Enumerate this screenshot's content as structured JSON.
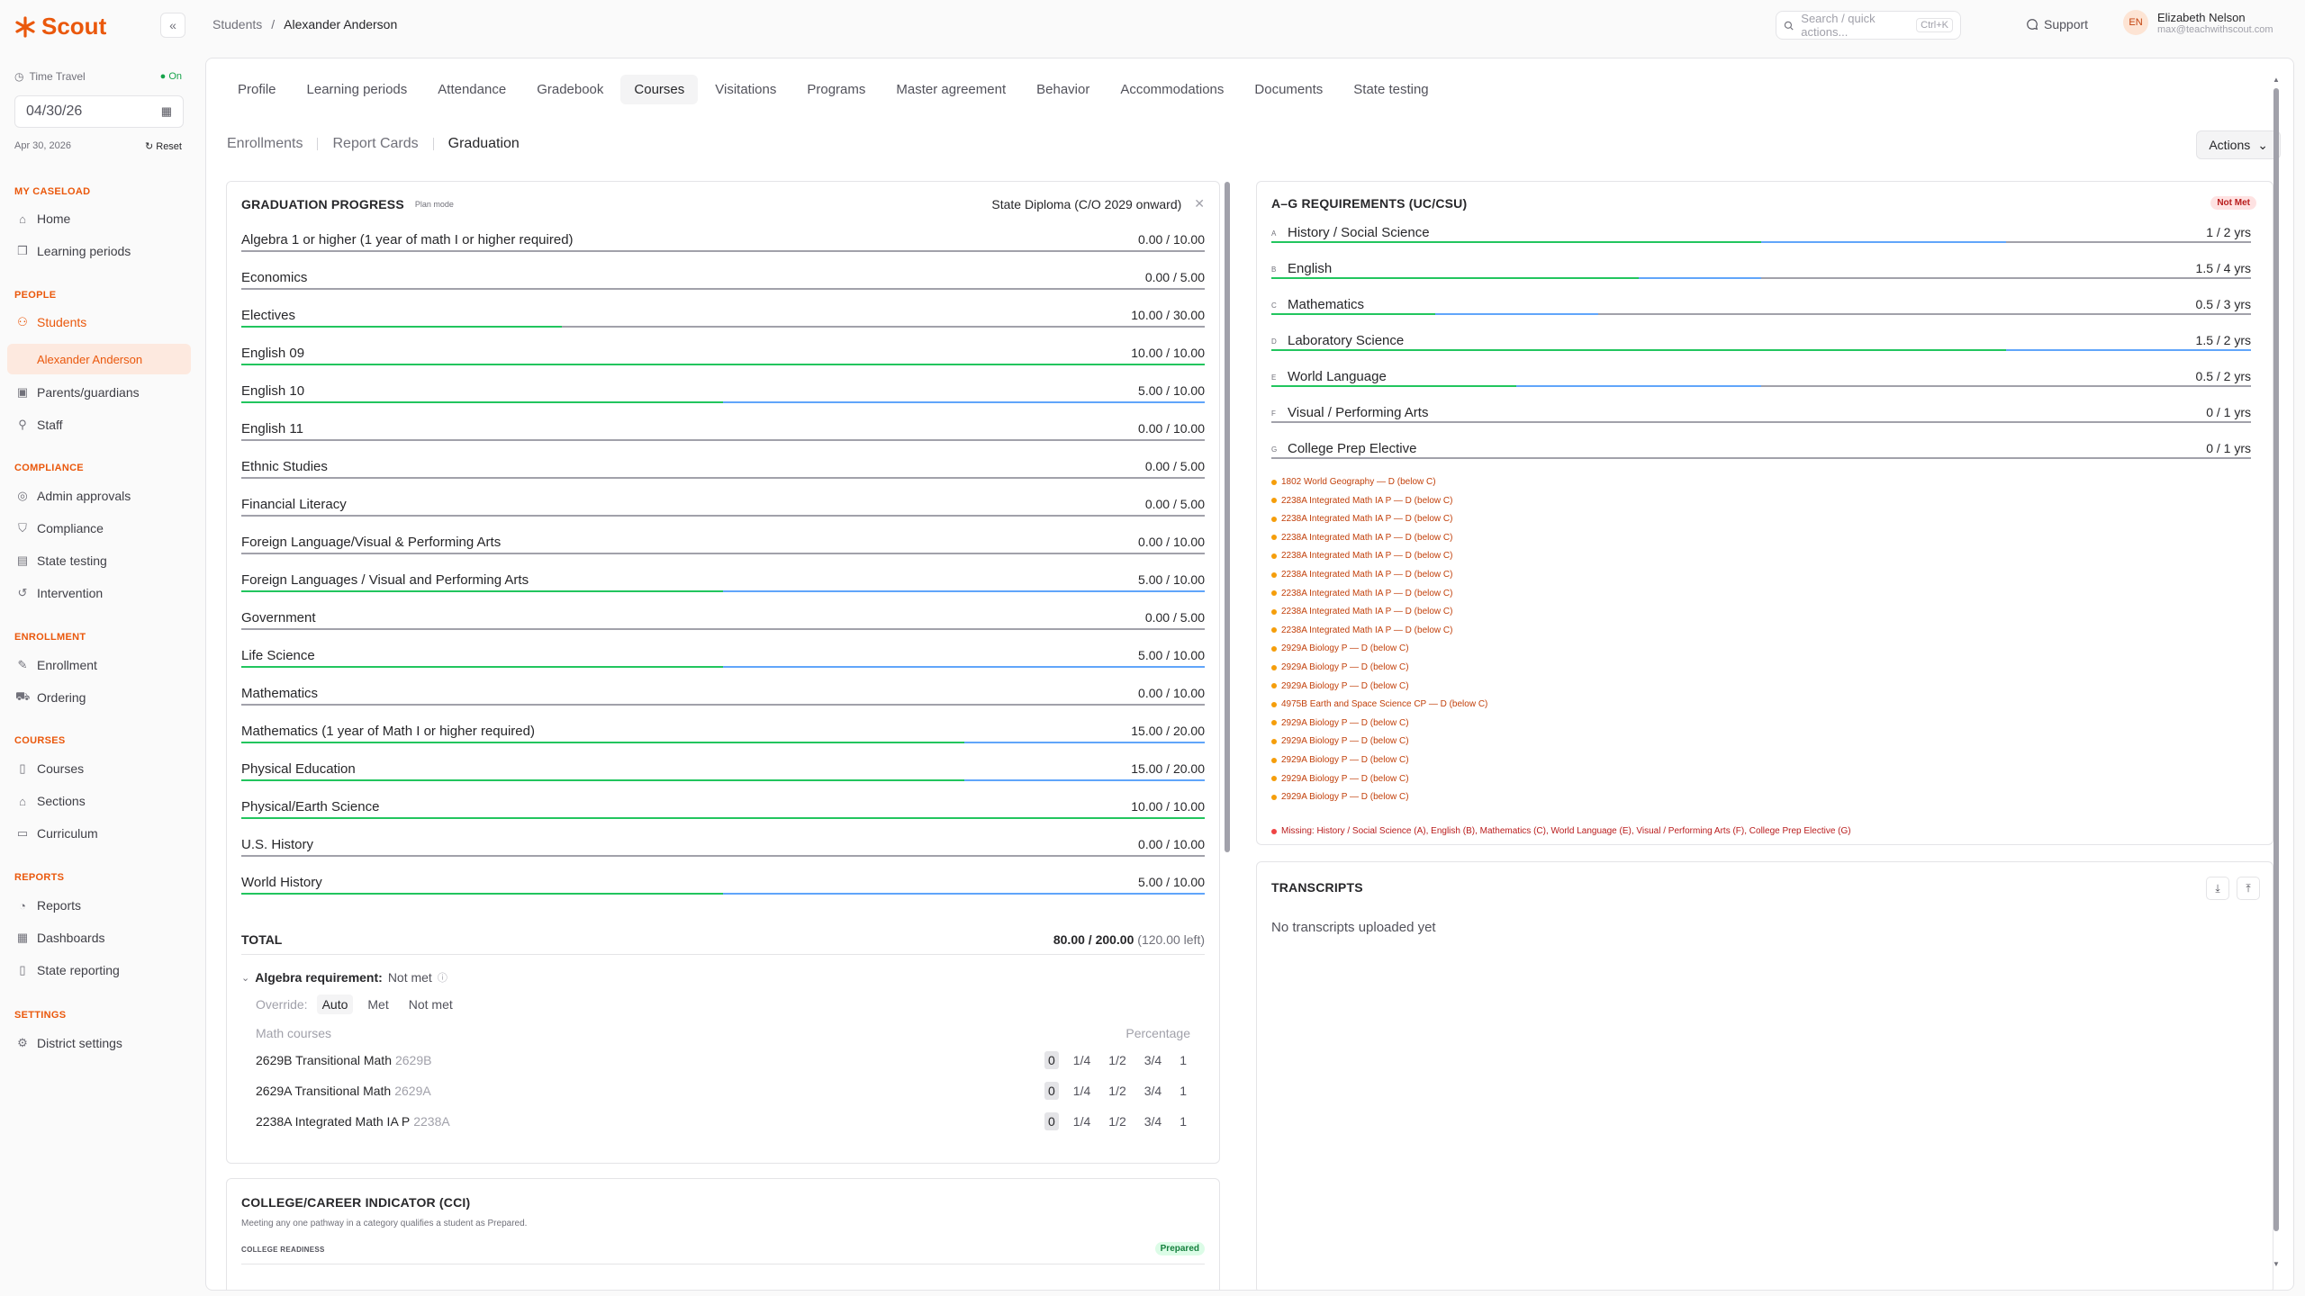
{
  "app": {
    "name": "Scout",
    "brand_color": "#ea580c"
  },
  "breadcrumb": [
    "Students",
    "Alexander Anderson"
  ],
  "search": {
    "placeholder": "Search / quick actions...",
    "shortcut": "Ctrl+K"
  },
  "support_label": "Support",
  "user": {
    "initials": "EN",
    "name": "Elizabeth Nelson",
    "email": "max@teachwithscout.com"
  },
  "time_travel": {
    "label": "Time Travel",
    "status": "On",
    "date": "04/30/26",
    "date_long": "Apr 30, 2026",
    "reset": "Reset"
  },
  "nav": {
    "my_caseload": "MY CASELOAD",
    "home": "Home",
    "learning_periods": "Learning periods",
    "people": "PEOPLE",
    "students": "Students",
    "student_sub": "Alexander Anderson",
    "parents": "Parents/guardians",
    "staff": "Staff",
    "compliance": "COMPLIANCE",
    "admin_approvals": "Admin approvals",
    "compliance_item": "Compliance",
    "state_testing": "State testing",
    "intervention": "Intervention",
    "enrollment": "ENROLLMENT",
    "enrollment_item": "Enrollment",
    "ordering": "Ordering",
    "courses": "COURSES",
    "courses_item": "Courses",
    "sections": "Sections",
    "curriculum": "Curriculum",
    "reports": "REPORTS",
    "reports_item": "Reports",
    "dashboards": "Dashboards",
    "state_reporting": "State reporting",
    "settings": "SETTINGS",
    "district_settings": "District settings"
  },
  "tabs": [
    "Profile",
    "Learning periods",
    "Attendance",
    "Gradebook",
    "Courses",
    "Visitations",
    "Programs",
    "Master agreement",
    "Behavior",
    "Accommodations",
    "Documents",
    "State testing"
  ],
  "subtabs": [
    "Enrollments",
    "Report Cards",
    "Graduation"
  ],
  "actions_label": "Actions",
  "grad": {
    "title": "GRADUATION PROGRESS",
    "plan_mode": "Plan mode",
    "diploma": "State Diploma (C/O 2029 onward)",
    "requirements": [
      {
        "name": "Algebra 1 or higher (1 year of math I or higher required)",
        "value": "0.00 / 10.00",
        "done": 0,
        "prog": 0
      },
      {
        "name": "Economics",
        "value": "0.00 / 5.00",
        "done": 0,
        "prog": 0
      },
      {
        "name": "Electives",
        "value": "10.00 / 30.00",
        "done": 0.333,
        "prog": 0
      },
      {
        "name": "English 09",
        "value": "10.00 / 10.00",
        "done": 1,
        "prog": 0
      },
      {
        "name": "English 10",
        "value": "5.00 / 10.00",
        "done": 0.5,
        "prog": 0.5
      },
      {
        "name": "English 11",
        "value": "0.00 / 10.00",
        "done": 0,
        "prog": 0
      },
      {
        "name": "Ethnic Studies",
        "value": "0.00 / 5.00",
        "done": 0,
        "prog": 0
      },
      {
        "name": "Financial Literacy",
        "value": "0.00 / 5.00",
        "done": 0,
        "prog": 0
      },
      {
        "name": "Foreign Language/Visual & Performing Arts",
        "value": "0.00 / 10.00",
        "done": 0,
        "prog": 0
      },
      {
        "name": "Foreign Languages / Visual and Performing Arts",
        "value": "5.00 / 10.00",
        "done": 0.5,
        "prog": 0.5
      },
      {
        "name": "Government",
        "value": "0.00 / 5.00",
        "done": 0,
        "prog": 0
      },
      {
        "name": "Life Science",
        "value": "5.00 / 10.00",
        "done": 0.5,
        "prog": 0.5
      },
      {
        "name": "Mathematics",
        "value": "0.00 / 10.00",
        "done": 0,
        "prog": 0
      },
      {
        "name": "Mathematics (1 year of Math I or higher required)",
        "value": "15.00 / 20.00",
        "done": 0.75,
        "prog": 0.25
      },
      {
        "name": "Physical Education",
        "value": "15.00 / 20.00",
        "done": 0.75,
        "prog": 0.25
      },
      {
        "name": "Physical/Earth Science",
        "value": "10.00 / 10.00",
        "done": 1,
        "prog": 0
      },
      {
        "name": "U.S. History",
        "value": "0.00 / 10.00",
        "done": 0,
        "prog": 0
      },
      {
        "name": "World History",
        "value": "5.00 / 10.00",
        "done": 0.5,
        "prog": 0.5
      }
    ],
    "total_label": "TOTAL",
    "total_value": "80.00 / 200.00",
    "total_left": "(120.00 left)",
    "algebra_label": "Algebra requirement:",
    "algebra_status": "Not met",
    "override_label": "Override:",
    "override_options": [
      "Auto",
      "Met",
      "Not met"
    ],
    "math_courses_label": "Math courses",
    "percentage_label": "Percentage",
    "math_courses": [
      {
        "name": "2629B Transitional Math",
        "code": "2629B"
      },
      {
        "name": "2629A Transitional Math",
        "code": "2629A"
      },
      {
        "name": "2238A Integrated Math IA P",
        "code": "2238A"
      }
    ],
    "pct_options": [
      "0",
      "1/4",
      "1/2",
      "3/4",
      "1"
    ]
  },
  "cci": {
    "title": "COLLEGE/CAREER INDICATOR (CCI)",
    "subtitle": "Meeting any one pathway in a category qualifies a student as Prepared.",
    "section": "COLLEGE READINESS",
    "badge": "Prepared"
  },
  "ag": {
    "title": "A–G REQUIREMENTS (UC/CSU)",
    "badge": "Not Met",
    "rows": [
      {
        "letter": "A",
        "name": "History / Social Science",
        "value": "1 / 2 yrs",
        "done": 0.5,
        "prog": 0.25
      },
      {
        "letter": "B",
        "name": "English",
        "value": "1.5 / 4 yrs",
        "done": 0.375,
        "prog": 0.125
      },
      {
        "letter": "C",
        "name": "Mathematics",
        "value": "0.5 / 3 yrs",
        "done": 0.167,
        "prog": 0.167
      },
      {
        "letter": "D",
        "name": "Laboratory Science",
        "value": "1.5 / 2 yrs",
        "done": 0.75,
        "prog": 0.25
      },
      {
        "letter": "E",
        "name": "World Language",
        "value": "0.5 / 2 yrs",
        "done": 0.25,
        "prog": 0.25
      },
      {
        "letter": "F",
        "name": "Visual / Performing Arts",
        "value": "0 / 1 yrs",
        "done": 0,
        "prog": 0
      },
      {
        "letter": "G",
        "name": "College Prep Elective",
        "value": "0 / 1 yrs",
        "done": 0,
        "prog": 0
      }
    ],
    "warnings": [
      "1802 World Geography — D (below C)",
      "2238A Integrated Math IA P — D (below C)",
      "2238A Integrated Math IA P — D (below C)",
      "2238A Integrated Math IA P — D (below C)",
      "2238A Integrated Math IA P — D (below C)",
      "2238A Integrated Math IA P — D (below C)",
      "2238A Integrated Math IA P — D (below C)",
      "2238A Integrated Math IA P — D (below C)",
      "2238A Integrated Math IA P — D (below C)",
      "2929A Biology P — D (below C)",
      "2929A Biology P — D (below C)",
      "2929A Biology P — D (below C)",
      "4975B Earth and Space Science CP — D (below C)",
      "2929A Biology P — D (below C)",
      "2929A Biology P — D (below C)",
      "2929A Biology P — D (below C)",
      "2929A Biology P — D (below C)",
      "2929A Biology P — D (below C)"
    ],
    "missing": "Missing: History / Social Science (A), English (B), Mathematics (C), World Language (E), Visual / Performing Arts (F), College Prep Elective (G)"
  },
  "transcripts": {
    "title": "TRANSCRIPTS",
    "empty": "No transcripts uploaded yet"
  }
}
